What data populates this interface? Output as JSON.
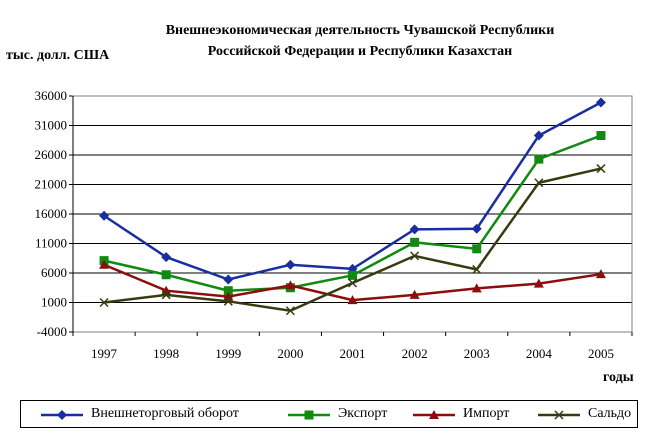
{
  "chart_data": {
    "type": "line",
    "title_line1": "Внешнеэкономическая деятельность Чувашской Республики",
    "title_line2": "Российской Федерации и Республики Казахстан",
    "ylabel": "тыс. долл. США",
    "xlabel": "годы",
    "categories": [
      "1997",
      "1998",
      "1999",
      "2000",
      "2001",
      "2002",
      "2003",
      "2004",
      "2005"
    ],
    "y_ticks": [
      -4000,
      1000,
      6000,
      11000,
      16000,
      21000,
      26000,
      31000,
      36000
    ],
    "ylim": [
      -4000,
      36000
    ],
    "grid": true,
    "legend_position": "bottom",
    "series": [
      {
        "name": "Внешнеторговый оборот",
        "color": "#1a2ea0",
        "marker": "diamond",
        "values": [
          15700,
          8700,
          4900,
          7400,
          6700,
          13400,
          13500,
          29300,
          34900
        ]
      },
      {
        "name": "Экспорт",
        "color": "#118a11",
        "marker": "square",
        "values": [
          8100,
          5700,
          3000,
          3500,
          5600,
          11200,
          10100,
          25300,
          29300
        ]
      },
      {
        "name": "Импорт",
        "color": "#8b0d0d",
        "marker": "triangle",
        "values": [
          7400,
          3000,
          2000,
          3900,
          1400,
          2300,
          3400,
          4200,
          5800
        ]
      },
      {
        "name": "Сальдо",
        "color": "#3a3a10",
        "marker": "x",
        "values": [
          1000,
          2300,
          1200,
          -400,
          4300,
          8900,
          6600,
          21300,
          23700
        ]
      }
    ]
  }
}
